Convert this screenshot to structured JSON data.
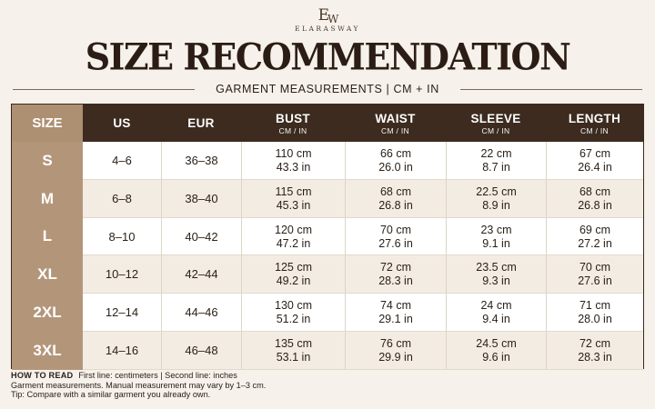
{
  "brand": {
    "monogram_e": "E",
    "monogram_w": "W",
    "name": "ELARASWAY"
  },
  "title": "SIZE RECOMMENDATION",
  "subtitle": "GARMENT MEASUREMENTS | CM + IN",
  "table": {
    "headers": {
      "size": "SIZE",
      "us": "US",
      "eur": "EUR",
      "bust": "BUST",
      "waist": "WAIST",
      "sleeve": "SLEEVE",
      "length": "LENGTH",
      "unit": "CM / IN"
    },
    "rows": [
      {
        "size": "S",
        "us": "4–6",
        "eur": "36–38",
        "bust_cm": "110 cm",
        "bust_in": "43.3 in",
        "waist_cm": "66 cm",
        "waist_in": "26.0 in",
        "sleeve_cm": "22 cm",
        "sleeve_in": "8.7 in",
        "length_cm": "67 cm",
        "length_in": "26.4 in"
      },
      {
        "size": "M",
        "us": "6–8",
        "eur": "38–40",
        "bust_cm": "115 cm",
        "bust_in": "45.3 in",
        "waist_cm": "68 cm",
        "waist_in": "26.8 in",
        "sleeve_cm": "22.5 cm",
        "sleeve_in": "8.9 in",
        "length_cm": "68 cm",
        "length_in": "26.8 in"
      },
      {
        "size": "L",
        "us": "8–10",
        "eur": "40–42",
        "bust_cm": "120 cm",
        "bust_in": "47.2 in",
        "waist_cm": "70 cm",
        "waist_in": "27.6 in",
        "sleeve_cm": "23 cm",
        "sleeve_in": "9.1 in",
        "length_cm": "69 cm",
        "length_in": "27.2 in"
      },
      {
        "size": "XL",
        "us": "10–12",
        "eur": "42–44",
        "bust_cm": "125 cm",
        "bust_in": "49.2 in",
        "waist_cm": "72 cm",
        "waist_in": "28.3 in",
        "sleeve_cm": "23.5 cm",
        "sleeve_in": "9.3 in",
        "length_cm": "70 cm",
        "length_in": "27.6 in"
      },
      {
        "size": "2XL",
        "us": "12–14",
        "eur": "44–46",
        "bust_cm": "130 cm",
        "bust_in": "51.2 in",
        "waist_cm": "74 cm",
        "waist_in": "29.1 in",
        "sleeve_cm": "24 cm",
        "sleeve_in": "9.4 in",
        "length_cm": "71 cm",
        "length_in": "28.0 in"
      },
      {
        "size": "3XL",
        "us": "14–16",
        "eur": "46–48",
        "bust_cm": "135 cm",
        "bust_in": "53.1 in",
        "waist_cm": "76 cm",
        "waist_in": "29.9 in",
        "sleeve_cm": "24.5 cm",
        "sleeve_in": "9.6 in",
        "length_cm": "72 cm",
        "length_in": "28.3 in"
      }
    ]
  },
  "footer": {
    "how_label": "HOW TO READ",
    "how_text": "First line: centimeters  |  Second line: inches",
    "note": "Garment measurements. Manual measurement may vary by 1–3 cm.",
    "tip": "Tip: Compare with a similar garment you already own."
  },
  "colors": {
    "header_bg": "#3d2b1f",
    "size_column": "#b3967a",
    "alt_row": "#f3ece2",
    "page_bg": "#f6f1ea"
  }
}
